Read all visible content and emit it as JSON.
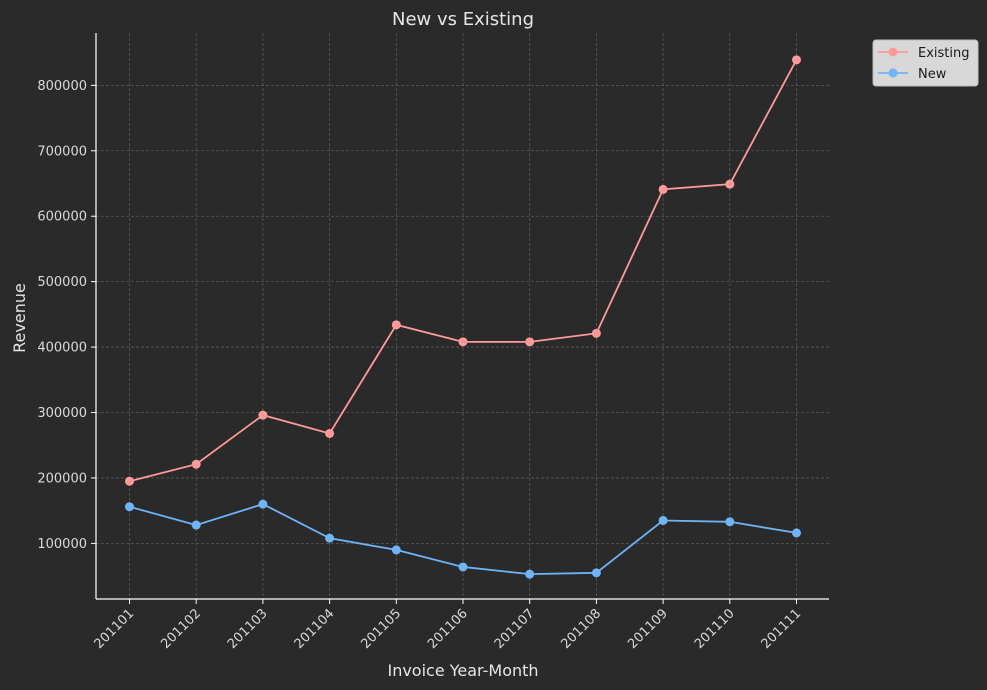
{
  "chart_data": {
    "type": "line",
    "title": "New vs Existing",
    "xlabel": "Invoice Year-Month",
    "ylabel": "Revenue",
    "categories": [
      "201101",
      "201102",
      "201103",
      "201104",
      "201105",
      "201106",
      "201107",
      "201108",
      "201109",
      "201110",
      "201111"
    ],
    "series": [
      {
        "name": "Existing",
        "color": "#ff9a9a",
        "values": [
          195000,
          221000,
          296000,
          268000,
          434000,
          408000,
          408000,
          421000,
          641000,
          649000,
          839000
        ]
      },
      {
        "name": "New",
        "color": "#6eb4f7",
        "values": [
          156000,
          128000,
          160000,
          108000,
          90000,
          64000,
          53000,
          55000,
          135000,
          133000,
          116000
        ]
      }
    ],
    "yticks": [
      100000,
      200000,
      300000,
      400000,
      500000,
      600000,
      700000,
      800000
    ],
    "ylim": [
      15000,
      880000
    ],
    "grid": true,
    "legend": "upper right, outside plot"
  }
}
